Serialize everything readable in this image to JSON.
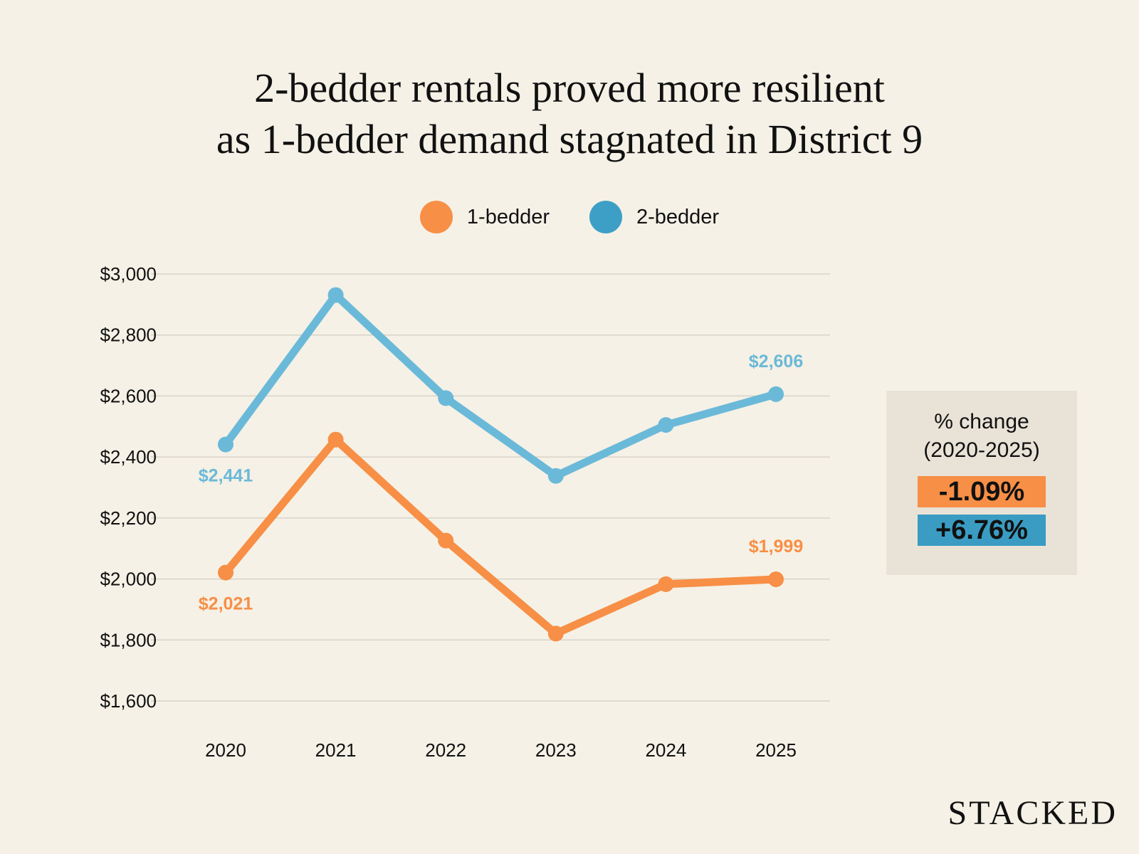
{
  "chart_data": {
    "type": "line",
    "title": [
      "2-bedder rentals proved more resilient",
      "as 1-bedder demand stagnated in District 9"
    ],
    "x": [
      "2020",
      "2021",
      "2022",
      "2023",
      "2024",
      "2025"
    ],
    "ylim": [
      1600,
      3000
    ],
    "yticks": [
      3000,
      2800,
      2600,
      2400,
      2200,
      2000,
      1800,
      1600
    ],
    "ytick_labels": [
      "$3,000",
      "$2,800",
      "$2,600",
      "$2,400",
      "$2,200",
      "$2,000",
      "$1,800",
      "$1,600"
    ],
    "grid": "horizontal",
    "legend_position": "top-center",
    "series": [
      {
        "name": "1-bedder",
        "color": "#f78f46",
        "values": [
          2021,
          2457,
          2126,
          1821,
          1983,
          1999
        ],
        "data_labels": {
          "0": "$2,021",
          "5": "$1,999"
        }
      },
      {
        "name": "2-bedder",
        "color": "#6bb9d8",
        "values": [
          2441,
          2931,
          2593,
          2338,
          2505,
          2606
        ],
        "data_labels": {
          "0": "$2,441",
          "5": "$2,606"
        }
      }
    ],
    "legend_colors": [
      "#f78f46",
      "#3d9fc6"
    ]
  },
  "change_box": {
    "label_line1": "% change",
    "label_line2": "(2020-2025)",
    "one_bedder": {
      "value": "-1.09%",
      "color": "#f78f46"
    },
    "two_bedder": {
      "value": "+6.76%",
      "color": "#3a9cc3"
    }
  },
  "logo": "STACKED"
}
